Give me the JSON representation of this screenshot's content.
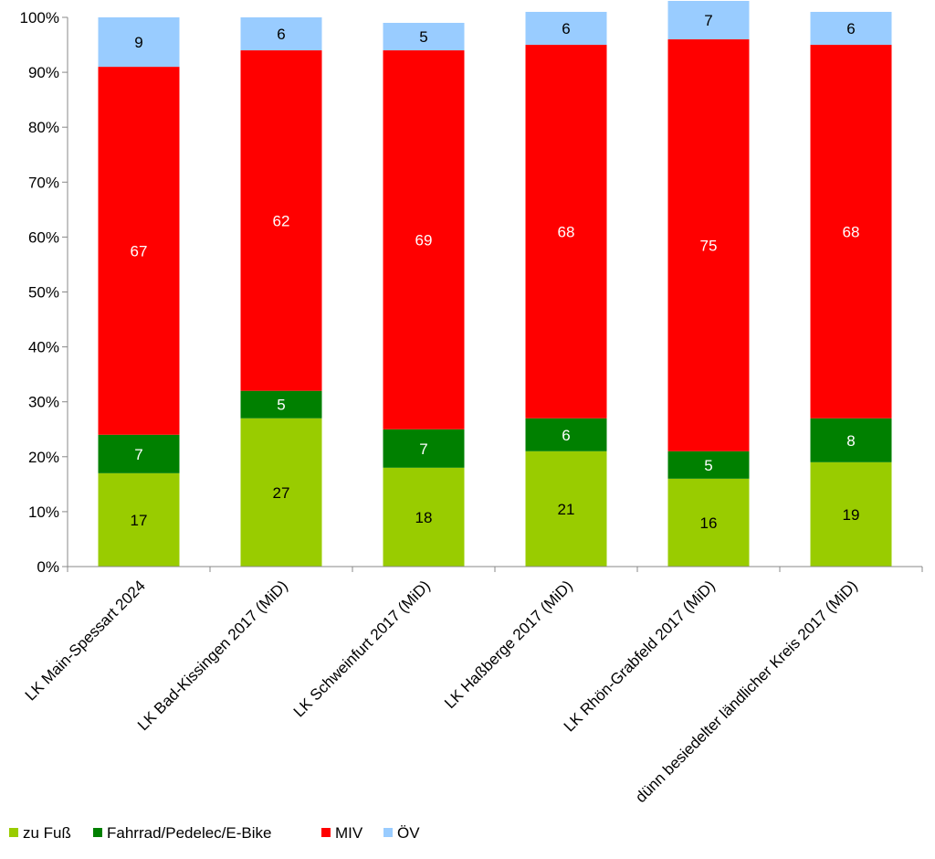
{
  "chart_data": {
    "type": "bar",
    "stacked": true,
    "percent_stacked": true,
    "title": "",
    "xlabel": "",
    "ylabel": "",
    "ylim": [
      0,
      100
    ],
    "yticks": [
      "0%",
      "10%",
      "20%",
      "30%",
      "40%",
      "50%",
      "60%",
      "70%",
      "80%",
      "90%",
      "100%"
    ],
    "grid": false,
    "legend_position": "bottom-left",
    "categories": [
      "LK Main-Spessart 2024",
      "LK Bad-Kissingen 2017 (MiD)",
      "LK Schweinfurt 2017 (MiD)",
      "LK Haßberge 2017 (MiD)",
      "LK Rhön-Grabfeld 2017 (MiD)",
      "dünn besiedelter ländlicher Kreis 2017 (MiD)"
    ],
    "series": [
      {
        "name": "zu Fuß",
        "color": "#99cc00",
        "label_color": "#000000",
        "values": [
          17,
          27,
          18,
          21,
          16,
          19
        ]
      },
      {
        "name": "Fahrrad/Pedelec/E-Bike",
        "color": "#008000",
        "label_color": "#ffffff",
        "values": [
          7,
          5,
          7,
          6,
          5,
          8
        ]
      },
      {
        "name": "MIV",
        "color": "#ff0000",
        "label_color": "#ffffff",
        "values": [
          67,
          62,
          69,
          68,
          75,
          68
        ]
      },
      {
        "name": "ÖV",
        "color": "#99ccff",
        "label_color": "#000000",
        "values": [
          9,
          6,
          5,
          6,
          7,
          6
        ]
      }
    ]
  }
}
